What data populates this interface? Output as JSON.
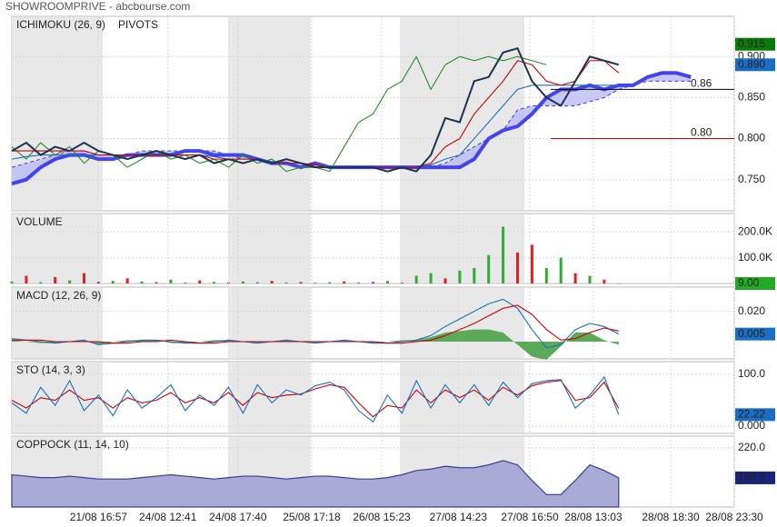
{
  "title": "SHOWROOMPRIVE - abcbourse.com",
  "chart_data": [
    {
      "type": "line",
      "title": "ICHIMOKU (26, 9)",
      "title_color": "#1a4f9c",
      "subtitle": "PIVOTS",
      "xlim": [
        0,
        100
      ],
      "ylim": [
        0.712,
        0.949
      ],
      "yticks": [
        {
          "value": 0.75,
          "label": "0.750"
        },
        {
          "value": 0.8,
          "label": "0.800"
        },
        {
          "value": 0.85,
          "label": "0.850"
        },
        {
          "value": 0.9,
          "label": "0.900"
        }
      ],
      "grid": true,
      "cloud": true,
      "cloud_color": "#bcbcf2",
      "x": [
        0,
        2,
        4,
        6,
        8,
        10,
        12,
        14,
        16,
        18,
        20,
        22,
        24,
        26,
        28,
        30,
        32,
        34,
        36,
        38,
        40,
        42,
        44,
        46,
        48,
        50,
        52,
        54,
        56,
        58,
        60,
        62,
        64,
        66,
        68,
        70,
        72,
        74,
        76,
        78,
        80,
        82,
        84,
        86,
        88,
        90,
        92,
        94
      ],
      "series": [
        {
          "color": "#4444ee",
          "thick": true,
          "values": [
            0.745,
            0.75,
            0.765,
            0.775,
            0.78,
            0.78,
            0.775,
            0.775,
            0.78,
            0.78,
            0.78,
            0.78,
            0.785,
            0.785,
            0.78,
            0.78,
            0.78,
            0.775,
            0.77,
            0.77,
            0.765,
            0.77,
            0.765,
            0.765,
            0.765,
            0.765,
            0.765,
            0.765,
            0.765,
            0.765,
            0.765,
            0.765,
            0.775,
            0.8,
            0.81,
            0.815,
            0.83,
            0.85,
            0.86,
            0.86,
            0.865,
            0.86,
            0.865,
            0.865,
            0.875,
            0.88,
            0.88,
            0.875
          ]
        },
        {
          "color": "#4444ee",
          "dash": true,
          "values": [
            0.765,
            0.77,
            0.775,
            0.78,
            0.785,
            0.785,
            0.78,
            0.78,
            0.78,
            0.785,
            0.785,
            0.785,
            0.785,
            0.785,
            0.785,
            0.78,
            0.775,
            0.775,
            0.77,
            0.77,
            0.765,
            0.765,
            0.765,
            0.765,
            0.765,
            0.765,
            0.765,
            0.765,
            0.765,
            0.765,
            0.77,
            0.78,
            0.79,
            0.8,
            0.81,
            0.835,
            0.84,
            0.84,
            0.84,
            0.84,
            0.845,
            0.85,
            0.86,
            0.865,
            0.87,
            0.87,
            0.87,
            0.87
          ]
        },
        {
          "color": "#2a8a2a",
          "values": [
            0.79,
            0.775,
            0.795,
            0.78,
            0.79,
            0.77,
            0.785,
            0.78,
            0.765,
            0.775,
            0.785,
            0.775,
            0.78,
            0.77,
            0.775,
            0.765,
            0.78,
            0.77,
            0.775,
            0.76,
            0.765,
            0.765,
            0.76,
            0.79,
            0.82,
            0.83,
            0.86,
            0.87,
            0.9,
            0.86,
            0.89,
            0.9,
            0.895,
            0.9,
            0.895,
            0.9,
            0.895,
            0.89,
            null,
            null,
            null,
            null,
            null,
            null,
            null,
            null,
            null,
            null
          ]
        },
        {
          "color": "#1a6fc4",
          "values": [
            0.775,
            0.778,
            0.78,
            0.78,
            0.78,
            0.78,
            0.78,
            0.78,
            0.78,
            0.78,
            0.78,
            0.78,
            0.78,
            0.78,
            0.778,
            0.775,
            0.775,
            0.775,
            0.772,
            0.77,
            0.77,
            0.768,
            0.766,
            0.765,
            0.765,
            0.765,
            0.765,
            0.765,
            0.765,
            0.768,
            0.775,
            0.78,
            0.8,
            0.82,
            0.84,
            0.86,
            0.865,
            0.865,
            0.865,
            0.865,
            0.865,
            0.865,
            0.865,
            null,
            null,
            null,
            null,
            null
          ]
        },
        {
          "color": "#cc0000",
          "values": [
            0.785,
            0.785,
            0.785,
            0.785,
            0.785,
            0.785,
            0.78,
            0.78,
            0.78,
            0.78,
            0.78,
            0.78,
            0.78,
            0.78,
            0.775,
            0.775,
            0.775,
            0.775,
            0.77,
            0.77,
            0.77,
            0.768,
            0.765,
            0.765,
            0.765,
            0.765,
            0.765,
            0.765,
            0.765,
            0.77,
            0.79,
            0.8,
            0.83,
            0.85,
            0.87,
            0.895,
            0.89,
            0.87,
            0.865,
            0.87,
            0.895,
            0.895,
            0.88,
            null,
            null,
            null,
            null,
            null
          ]
        },
        {
          "color": "#1c3350",
          "values": [
            0.785,
            0.795,
            0.78,
            0.79,
            0.785,
            0.795,
            0.785,
            0.78,
            0.775,
            0.78,
            0.785,
            0.78,
            0.775,
            0.78,
            0.77,
            0.775,
            0.77,
            0.775,
            0.77,
            0.775,
            0.77,
            0.765,
            0.765,
            0.765,
            0.765,
            0.765,
            0.76,
            0.765,
            0.76,
            0.78,
            0.825,
            0.82,
            0.87,
            0.875,
            0.905,
            0.91,
            0.87,
            0.85,
            0.84,
            0.87,
            0.9,
            0.895,
            0.89,
            null,
            null,
            null,
            null,
            null
          ]
        }
      ],
      "pivots": [
        {
          "value": 0.86,
          "label": "0.86",
          "color": "#000000"
        },
        {
          "value": 0.8,
          "label": "0.80",
          "color": "#cc0000"
        }
      ],
      "last_labels": [
        {
          "value": 0.915,
          "label": "0.915",
          "color": "#0a7a0a"
        },
        {
          "value": 0.89,
          "label": "0.890",
          "color": "#1a6fc4"
        }
      ]
    },
    {
      "type": "bar",
      "title": "VOLUME",
      "title_color": "#2a9a2a",
      "xlim": [
        0,
        100
      ],
      "ylim": [
        0,
        271000
      ],
      "yticks": [
        {
          "value": 100000,
          "label": "100.0K"
        },
        {
          "value": 200000,
          "label": "200.0K"
        }
      ],
      "grid": true,
      "x": [
        0,
        2,
        4,
        6,
        8,
        10,
        12,
        14,
        16,
        18,
        20,
        22,
        24,
        26,
        28,
        30,
        32,
        34,
        36,
        38,
        40,
        42,
        44,
        46,
        48,
        50,
        52,
        54,
        56,
        58,
        60,
        62,
        64,
        66,
        68,
        70,
        72,
        74,
        76,
        78,
        80,
        82,
        84
      ],
      "values": [
        8000,
        30000,
        5000,
        25000,
        12000,
        40000,
        6000,
        10000,
        20000,
        8000,
        5000,
        15000,
        4000,
        12000,
        6000,
        3000,
        8000,
        5000,
        10000,
        4000,
        6000,
        3000,
        5000,
        8000,
        4000,
        6000,
        10000,
        3000,
        30000,
        40000,
        20000,
        50000,
        60000,
        110000,
        220000,
        120000,
        150000,
        60000,
        100000,
        40000,
        30000,
        15000,
        9
      ],
      "colors": [
        "#33aa33",
        "#dd2222",
        "#33aa33",
        "#dd2222",
        "#33aa33",
        "#dd2222",
        "#dd2222",
        "#33aa33",
        "#dd2222",
        "#33aa33",
        "#dd2222",
        "#33aa33",
        "#33aa33",
        "#dd2222",
        "#33aa33",
        "#dd2222",
        "#33aa33",
        "#33aa33",
        "#dd2222",
        "#33aa33",
        "#dd2222",
        "#33aa33",
        "#33aa33",
        "#dd2222",
        "#33aa33",
        "#dd2222",
        "#33aa33",
        "#dd2222",
        "#33aa33",
        "#33aa33",
        "#dd2222",
        "#33aa33",
        "#33aa33",
        "#33aa33",
        "#33aa33",
        "#dd2222",
        "#dd2222",
        "#33aa33",
        "#33aa33",
        "#dd2222",
        "#33aa33",
        "#dd2222",
        "#33aa33"
      ],
      "last_labels": [
        {
          "value": 9,
          "label": "9.00",
          "color": "#22aa22"
        }
      ]
    },
    {
      "type": "line",
      "title": "MACD (12, 26, 9)",
      "title_color": "#1a4f9c",
      "xlim": [
        0,
        100
      ],
      "ylim": [
        -0.0114,
        0.036
      ],
      "yticks": [
        {
          "value": 0.02,
          "label": "0.020"
        }
      ],
      "grid": true,
      "x": [
        0,
        2,
        4,
        6,
        8,
        10,
        12,
        14,
        16,
        18,
        20,
        22,
        24,
        26,
        28,
        30,
        32,
        34,
        36,
        38,
        40,
        42,
        44,
        46,
        48,
        50,
        52,
        54,
        56,
        58,
        60,
        62,
        64,
        66,
        68,
        70,
        72,
        74,
        76,
        78,
        80,
        82,
        84
      ],
      "series": [
        {
          "color": "#5aaa5a",
          "type": "area",
          "values": [
            0.001,
            0,
            -0.001,
            -0.001,
            0,
            0.001,
            -0.002,
            0,
            0.001,
            0.001,
            0.001,
            -0.001,
            -0.001,
            0,
            0.001,
            0.001,
            0,
            -0.001,
            0,
            0.001,
            0,
            -0.001,
            0,
            0.001,
            0,
            -0.001,
            0,
            0.001,
            0.001,
            0.003,
            0.006,
            0.007,
            0.008,
            0.008,
            0.006,
            -0.002,
            -0.01,
            -0.012,
            -0.003,
            0.006,
            0.006,
            0.001,
            -0.002
          ]
        },
        {
          "color": "#1a6fc4",
          "values": [
            0.002,
            0.001,
            0,
            -0.001,
            0,
            0.001,
            -0.002,
            -0.001,
            0,
            0.001,
            0.001,
            0,
            -0.001,
            -0.001,
            0,
            0.001,
            0,
            -0.001,
            0,
            0.001,
            0,
            -0.001,
            0,
            0.001,
            0,
            -0.001,
            -0.001,
            0,
            0.001,
            0.004,
            0.01,
            0.015,
            0.02,
            0.025,
            0.028,
            0.022,
            0.008,
            -0.004,
            -0.002,
            0.008,
            0.012,
            0.01,
            0.005
          ]
        },
        {
          "color": "#cc0000",
          "values": [
            0.001,
            0.001,
            0.001,
            0,
            0,
            0,
            0,
            -0.001,
            -0.001,
            0,
            0,
            0.001,
            0,
            -0.001,
            -0.001,
            0,
            0,
            0,
            0,
            0,
            0,
            0,
            0,
            0,
            0,
            0,
            -0.001,
            -0.001,
            0,
            0.001,
            0.004,
            0.008,
            0.012,
            0.017,
            0.022,
            0.024,
            0.018,
            0.008,
            0.001,
            0.002,
            0.006,
            0.009,
            0.007
          ]
        }
      ],
      "last_labels": [
        {
          "value": 0.005,
          "label": "0.005",
          "color": "#1a6fc4"
        }
      ]
    },
    {
      "type": "line",
      "title": "STO (14, 3, 3)",
      "title_color": "#1a4f9c",
      "xlim": [
        0,
        100
      ],
      "ylim": [
        -14,
        124.6
      ],
      "yticks": [
        {
          "value": 0,
          "label": "0.000"
        },
        {
          "value": 100,
          "label": "100.0"
        }
      ],
      "grid": true,
      "x": [
        0,
        2,
        4,
        6,
        8,
        10,
        12,
        14,
        16,
        18,
        20,
        22,
        24,
        26,
        28,
        30,
        32,
        34,
        36,
        38,
        40,
        42,
        44,
        46,
        48,
        50,
        52,
        54,
        56,
        58,
        60,
        62,
        64,
        66,
        68,
        70,
        72,
        74,
        76,
        78,
        80,
        82,
        84
      ],
      "series": [
        {
          "color": "#cc0000",
          "values": [
            50,
            35,
            55,
            50,
            70,
            50,
            55,
            35,
            55,
            45,
            50,
            65,
            45,
            55,
            45,
            65,
            40,
            65,
            55,
            60,
            62,
            72,
            80,
            75,
            45,
            18,
            40,
            35,
            70,
            45,
            70,
            55,
            70,
            50,
            75,
            60,
            78,
            85,
            88,
            50,
            55,
            85,
            34
          ]
        },
        {
          "color": "#1a6fc4",
          "values": [
            45,
            25,
            75,
            40,
            88,
            30,
            60,
            20,
            70,
            35,
            55,
            80,
            30,
            60,
            40,
            75,
            25,
            80,
            45,
            70,
            60,
            78,
            85,
            70,
            30,
            8,
            60,
            25,
            88,
            35,
            80,
            45,
            80,
            40,
            85,
            55,
            82,
            88,
            90,
            35,
            60,
            95,
            22.22
          ]
        }
      ],
      "last_labels": [
        {
          "value": 22.22,
          "label": "22.22",
          "color": "#1a6fc4"
        }
      ]
    },
    {
      "type": "line",
      "title": "COPPOCK (11, 14, 10)",
      "title_color": "#1a237e",
      "xlim": [
        0,
        100
      ],
      "ylim": [
        178.2,
        228.3
      ],
      "yticks": [
        {
          "value": 220,
          "label": "220.0"
        }
      ],
      "grid": true,
      "x": [
        0,
        2,
        4,
        6,
        8,
        10,
        12,
        14,
        16,
        18,
        20,
        22,
        24,
        26,
        28,
        30,
        32,
        34,
        36,
        38,
        40,
        42,
        44,
        46,
        48,
        50,
        52,
        54,
        56,
        58,
        60,
        62,
        64,
        66,
        68,
        70,
        72,
        74,
        76,
        78,
        80,
        82,
        84
      ],
      "series": [
        {
          "color": "#3a3f8f",
          "fill": "#aaaad6",
          "type": "area",
          "values": [
            201,
            200,
            199,
            199,
            200,
            199,
            198,
            198,
            198,
            199,
            200,
            201,
            200,
            199,
            198,
            199,
            200,
            200,
            199,
            198,
            199,
            200,
            200,
            199,
            198,
            198,
            199,
            201,
            204,
            205,
            207,
            206,
            206,
            208,
            211,
            208,
            197,
            187,
            187,
            197,
            208,
            204,
            198.8
          ]
        }
      ],
      "last_labels": [
        {
          "value": 198.8,
          "label": "198.8",
          "color": "#1a237e"
        }
      ],
      "xticks": [
        {
          "value": 12,
          "label": "21/08 16:57"
        },
        {
          "value": 21.6,
          "label": "24/08 12:41"
        },
        {
          "value": 31.3,
          "label": "24/08 17:40"
        },
        {
          "value": 41.5,
          "label": "25/08 17:18"
        },
        {
          "value": 51.2,
          "label": "26/08 15:23"
        },
        {
          "value": 61.8,
          "label": "27/08 14:23"
        },
        {
          "value": 71.7,
          "label": "27/08 16:50"
        },
        {
          "value": 80.5,
          "label": "28/08 13:03"
        },
        {
          "value": 91.2,
          "label": "28/08 18:30"
        },
        {
          "value": 100,
          "label": "28/08 23:30"
        }
      ]
    }
  ]
}
